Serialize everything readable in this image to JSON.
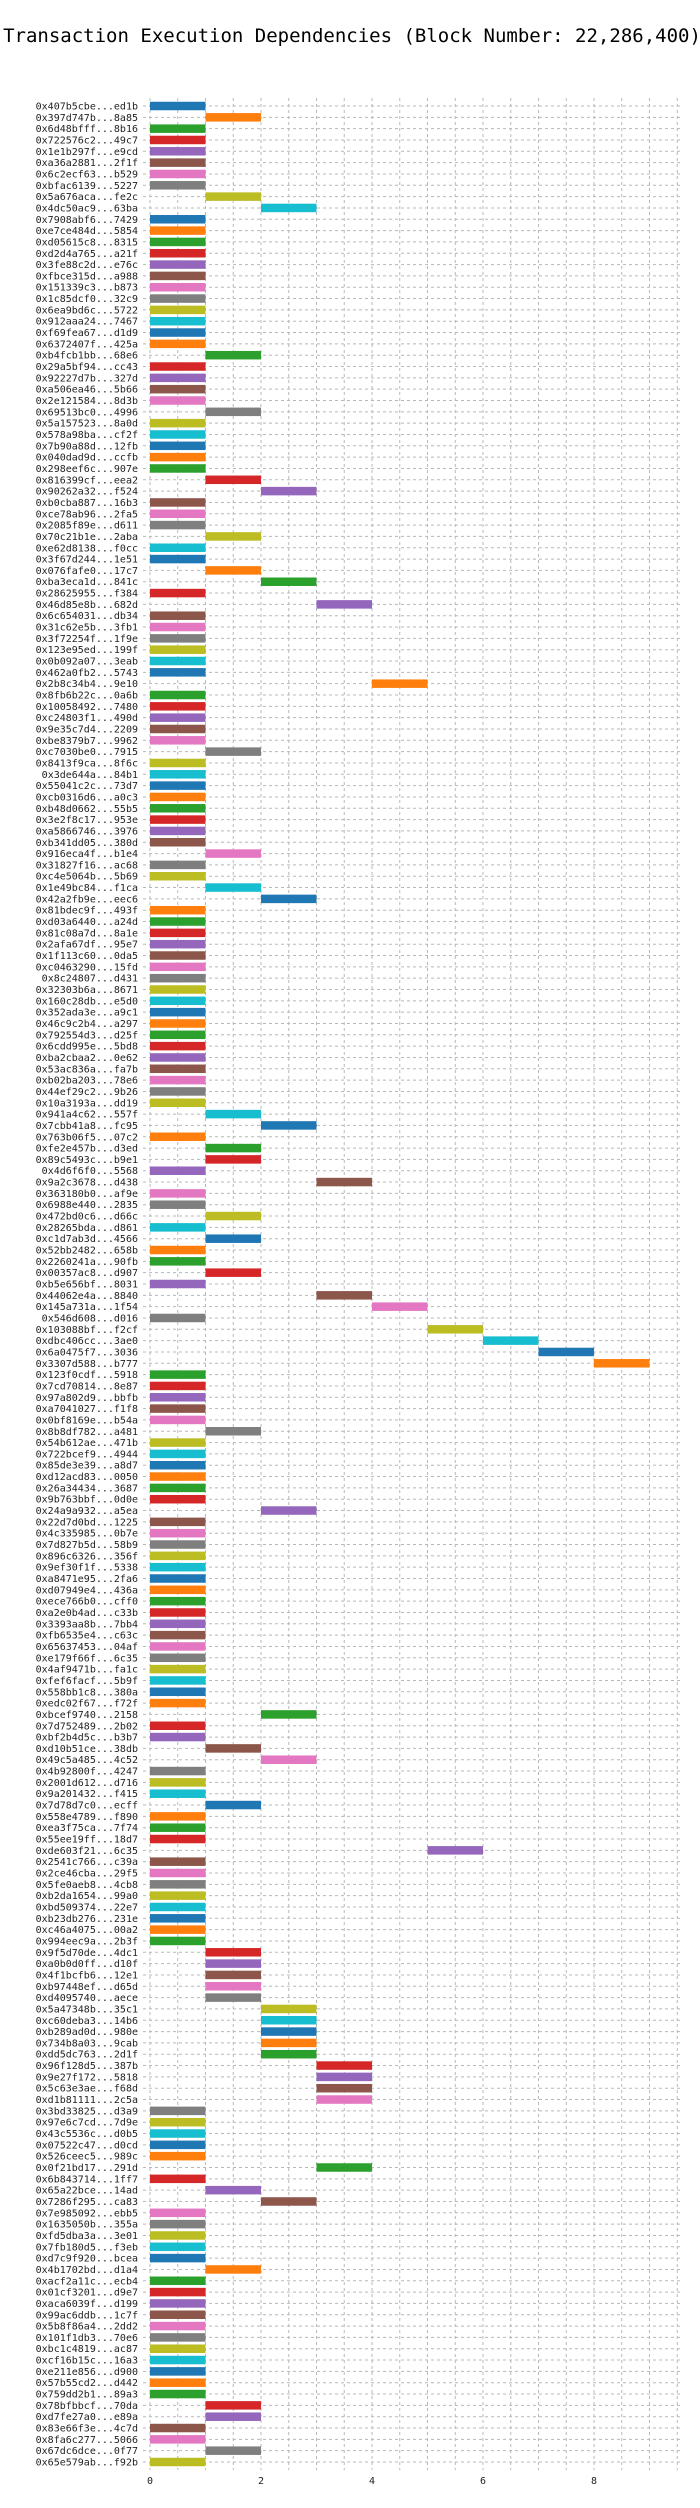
{
  "chart_data": {
    "type": "gantt-bar",
    "title": "Transaction Execution Dependencies (Block Number: 22,286,400)",
    "xlabel": "",
    "ylabel": "",
    "xlim": [
      0,
      10
    ],
    "x_ticks": [
      0,
      2,
      4,
      6,
      8
    ],
    "grid": true,
    "legend": "none",
    "palette": [
      "#1f77b4",
      "#ff7f0e",
      "#2ca02c",
      "#d62728",
      "#9467bd",
      "#8c564b",
      "#e377c2",
      "#7f7f7f",
      "#bcbd22",
      "#17becf"
    ],
    "transactions": [
      {
        "label": "0x407b5cbe...ed1b",
        "start": 0,
        "end": 1
      },
      {
        "label": "0x397d747b...8a85",
        "start": 1,
        "end": 2
      },
      {
        "label": "0x6d48bfff...8b16",
        "start": 0,
        "end": 1
      },
      {
        "label": "0x722576c2...49c7",
        "start": 0,
        "end": 1
      },
      {
        "label": "0x1e1b297f...e9cd",
        "start": 0,
        "end": 1
      },
      {
        "label": "0xa36a2881...2f1f",
        "start": 0,
        "end": 1
      },
      {
        "label": "0x6c2ecf63...b529",
        "start": 0,
        "end": 1
      },
      {
        "label": "0xbfac6139...5227",
        "start": 0,
        "end": 1
      },
      {
        "label": "0x5a676aca...fe2c",
        "start": 1,
        "end": 2
      },
      {
        "label": "0x4dc50ac9...63ba",
        "start": 2,
        "end": 3
      },
      {
        "label": "0x7908abf6...7429",
        "start": 0,
        "end": 1
      },
      {
        "label": "0xe7ce484d...5854",
        "start": 0,
        "end": 1
      },
      {
        "label": "0xd05615c8...8315",
        "start": 0,
        "end": 1
      },
      {
        "label": "0xd2d4a765...a21f",
        "start": 0,
        "end": 1
      },
      {
        "label": "0x3fe88c2d...e76c",
        "start": 0,
        "end": 1
      },
      {
        "label": "0xfbce315d...a988",
        "start": 0,
        "end": 1
      },
      {
        "label": "0x151339c3...b873",
        "start": 0,
        "end": 1
      },
      {
        "label": "0x1c85dcf0...32c9",
        "start": 0,
        "end": 1
      },
      {
        "label": "0x6ea9bd6c...5722",
        "start": 0,
        "end": 1
      },
      {
        "label": "0x912aaa24...7467",
        "start": 0,
        "end": 1
      },
      {
        "label": "0xf69fea67...d1d9",
        "start": 0,
        "end": 1
      },
      {
        "label": "0x6372407f...425a",
        "start": 0,
        "end": 1
      },
      {
        "label": "0xb4fcb1bb...68e6",
        "start": 1,
        "end": 2
      },
      {
        "label": "0x29a5bf94...cc43",
        "start": 0,
        "end": 1
      },
      {
        "label": "0x92227d7b...327d",
        "start": 0,
        "end": 1
      },
      {
        "label": "0xa506ea46...5b66",
        "start": 0,
        "end": 1
      },
      {
        "label": "0x2e121584...8d3b",
        "start": 0,
        "end": 1
      },
      {
        "label": "0x69513bc0...4996",
        "start": 1,
        "end": 2
      },
      {
        "label": "0x5a157523...8a0d",
        "start": 0,
        "end": 1
      },
      {
        "label": "0x578a98ba...cf2f",
        "start": 0,
        "end": 1
      },
      {
        "label": "0x7b90a88d...12fb",
        "start": 0,
        "end": 1
      },
      {
        "label": "0x040dad9d...ccfb",
        "start": 0,
        "end": 1
      },
      {
        "label": "0x298eef6c...907e",
        "start": 0,
        "end": 1
      },
      {
        "label": "0x816399cf...eea2",
        "start": 1,
        "end": 2
      },
      {
        "label": "0x90262a32...f524",
        "start": 2,
        "end": 3
      },
      {
        "label": "0xb0cba887...16b3",
        "start": 0,
        "end": 1
      },
      {
        "label": "0xce78ab96...2fa5",
        "start": 0,
        "end": 1
      },
      {
        "label": "0x2085f89e...d611",
        "start": 0,
        "end": 1
      },
      {
        "label": "0x70c21b1e...2aba",
        "start": 1,
        "end": 2
      },
      {
        "label": "0xe62d8138...f0cc",
        "start": 0,
        "end": 1
      },
      {
        "label": "0x3f67d244...1e51",
        "start": 0,
        "end": 1
      },
      {
        "label": "0x076fafe0...17c7",
        "start": 1,
        "end": 2
      },
      {
        "label": "0xba3eca1d...841c",
        "start": 2,
        "end": 3
      },
      {
        "label": "0x28625955...f384",
        "start": 0,
        "end": 1
      },
      {
        "label": "0x46d85e8b...682d",
        "start": 3,
        "end": 4
      },
      {
        "label": "0x6c654031...db34",
        "start": 0,
        "end": 1
      },
      {
        "label": "0x31c62e5b...3fb1",
        "start": 0,
        "end": 1
      },
      {
        "label": "0x3f72254f...1f9e",
        "start": 0,
        "end": 1
      },
      {
        "label": "0x123e95ed...199f",
        "start": 0,
        "end": 1
      },
      {
        "label": "0x0b092a07...3eab",
        "start": 0,
        "end": 1
      },
      {
        "label": "0x462a0fb2...5743",
        "start": 0,
        "end": 1
      },
      {
        "label": "0x2b8c34b4...9e10",
        "start": 4,
        "end": 5
      },
      {
        "label": "0x8fb6b22c...0a6b",
        "start": 0,
        "end": 1
      },
      {
        "label": "0x10058492...7480",
        "start": 0,
        "end": 1
      },
      {
        "label": "0xc24803f1...490d",
        "start": 0,
        "end": 1
      },
      {
        "label": "0x9e35c7d4...2209",
        "start": 0,
        "end": 1
      },
      {
        "label": "0xbe8379b7...9962",
        "start": 0,
        "end": 1
      },
      {
        "label": "0xc7030be0...7915",
        "start": 1,
        "end": 2
      },
      {
        "label": "0x8413f9ca...8f6c",
        "start": 0,
        "end": 1
      },
      {
        "label": "0x3de644a...84b1",
        "start": 0,
        "end": 1
      },
      {
        "label": "0x55041c2c...73d7",
        "start": 0,
        "end": 1
      },
      {
        "label": "0xcb0316d6...a0c3",
        "start": 0,
        "end": 1
      },
      {
        "label": "0xb48d0662...55b5",
        "start": 0,
        "end": 1
      },
      {
        "label": "0x3e2f8c17...953e",
        "start": 0,
        "end": 1
      },
      {
        "label": "0xa5866746...3976",
        "start": 0,
        "end": 1
      },
      {
        "label": "0xb341dd05...380d",
        "start": 0,
        "end": 1
      },
      {
        "label": "0x916eca4f...b1e4",
        "start": 1,
        "end": 2
      },
      {
        "label": "0x31827f16...ac68",
        "start": 0,
        "end": 1
      },
      {
        "label": "0xc4e5064b...5b69",
        "start": 0,
        "end": 1
      },
      {
        "label": "0x1e49bc84...f1ca",
        "start": 1,
        "end": 2
      },
      {
        "label": "0x42a2fb9e...eec6",
        "start": 2,
        "end": 3
      },
      {
        "label": "0x81bdec9f...493f",
        "start": 0,
        "end": 1
      },
      {
        "label": "0xd03a6440...a24d",
        "start": 0,
        "end": 1
      },
      {
        "label": "0x81c08a7d...8a1e",
        "start": 0,
        "end": 1
      },
      {
        "label": "0x2afa67df...95e7",
        "start": 0,
        "end": 1
      },
      {
        "label": "0x1f113c60...0da5",
        "start": 0,
        "end": 1
      },
      {
        "label": "0xc0463290...15fd",
        "start": 0,
        "end": 1
      },
      {
        "label": "0x8c24807...d431",
        "start": 0,
        "end": 1
      },
      {
        "label": "0x32303b6a...8671",
        "start": 0,
        "end": 1
      },
      {
        "label": "0x160c28db...e5d0",
        "start": 0,
        "end": 1
      },
      {
        "label": "0x352ada3e...a9c1",
        "start": 0,
        "end": 1
      },
      {
        "label": "0x46c9c2b4...a297",
        "start": 0,
        "end": 1
      },
      {
        "label": "0x792554d3...d25f",
        "start": 0,
        "end": 1
      },
      {
        "label": "0x6cdd995e...5bd8",
        "start": 0,
        "end": 1
      },
      {
        "label": "0xba2cbaa2...0e62",
        "start": 0,
        "end": 1
      },
      {
        "label": "0x53ac836a...fa7b",
        "start": 0,
        "end": 1
      },
      {
        "label": "0xb02ba203...78e6",
        "start": 0,
        "end": 1
      },
      {
        "label": "0x44ef29c2...9b26",
        "start": 0,
        "end": 1
      },
      {
        "label": "0x10a3193a...dd19",
        "start": 0,
        "end": 1
      },
      {
        "label": "0x941a4c62...557f",
        "start": 1,
        "end": 2
      },
      {
        "label": "0x7cbb41a8...fc95",
        "start": 2,
        "end": 3
      },
      {
        "label": "0x763b06f5...07c2",
        "start": 0,
        "end": 1
      },
      {
        "label": "0xfe2e457b...d3ed",
        "start": 1,
        "end": 2
      },
      {
        "label": "0x89c5493c...b9e1",
        "start": 1,
        "end": 2
      },
      {
        "label": "0x4d6f6f0...5568",
        "start": 0,
        "end": 1
      },
      {
        "label": "0x9a2c3678...d438",
        "start": 3,
        "end": 4
      },
      {
        "label": "0x363180b0...af9e",
        "start": 0,
        "end": 1
      },
      {
        "label": "0x6988e440...2835",
        "start": 0,
        "end": 1
      },
      {
        "label": "0x472bd0c6...d66c",
        "start": 1,
        "end": 2
      },
      {
        "label": "0x28265bda...d861",
        "start": 0,
        "end": 1
      },
      {
        "label": "0xc1d7ab3d...4566",
        "start": 1,
        "end": 2
      },
      {
        "label": "0x52bb2482...658b",
        "start": 0,
        "end": 1
      },
      {
        "label": "0x2260241a...90fb",
        "start": 0,
        "end": 1
      },
      {
        "label": "0x00357ac8...d907",
        "start": 1,
        "end": 2
      },
      {
        "label": "0xb5e656bf...8031",
        "start": 0,
        "end": 1
      },
      {
        "label": "0x44062e4a...8840",
        "start": 3,
        "end": 4
      },
      {
        "label": "0x145a731a...1f54",
        "start": 4,
        "end": 5
      },
      {
        "label": "0x546d608...d016",
        "start": 0,
        "end": 1
      },
      {
        "label": "0x103088bf...f2cf",
        "start": 5,
        "end": 6
      },
      {
        "label": "0xdbc406cc...3ae0",
        "start": 6,
        "end": 7
      },
      {
        "label": "0x6a0475f7...3036",
        "start": 7,
        "end": 8
      },
      {
        "label": "0x3307d588...b777",
        "start": 8,
        "end": 9
      },
      {
        "label": "0x123f0cdf...5918",
        "start": 0,
        "end": 1
      },
      {
        "label": "0x7cd70814...8e87",
        "start": 0,
        "end": 1
      },
      {
        "label": "0x97a802d9...bbfb",
        "start": 0,
        "end": 1
      },
      {
        "label": "0xa7041027...f1f8",
        "start": 0,
        "end": 1
      },
      {
        "label": "0x0bf8169e...b54a",
        "start": 0,
        "end": 1
      },
      {
        "label": "0x8b8df782...a481",
        "start": 1,
        "end": 2
      },
      {
        "label": "0x54b612ae...471b",
        "start": 0,
        "end": 1
      },
      {
        "label": "0x722bcef9...4944",
        "start": 0,
        "end": 1
      },
      {
        "label": "0x85de3e39...a8d7",
        "start": 0,
        "end": 1
      },
      {
        "label": "0xd12acd83...0050",
        "start": 0,
        "end": 1
      },
      {
        "label": "0x26a34434...3687",
        "start": 0,
        "end": 1
      },
      {
        "label": "0x9b763bbf...0d0e",
        "start": 0,
        "end": 1
      },
      {
        "label": "0x24a9a932...a5ea",
        "start": 2,
        "end": 3
      },
      {
        "label": "0x22d7d0bd...1225",
        "start": 0,
        "end": 1
      },
      {
        "label": "0x4c335985...0b7e",
        "start": 0,
        "end": 1
      },
      {
        "label": "0x7d827b5d...58b9",
        "start": 0,
        "end": 1
      },
      {
        "label": "0x896c6326...356f",
        "start": 0,
        "end": 1
      },
      {
        "label": "0x9ef30f1f...5338",
        "start": 0,
        "end": 1
      },
      {
        "label": "0xa8471e95...2fa6",
        "start": 0,
        "end": 1
      },
      {
        "label": "0xd07949e4...436a",
        "start": 0,
        "end": 1
      },
      {
        "label": "0xece766b0...cff0",
        "start": 0,
        "end": 1
      },
      {
        "label": "0xa2e0b4ad...c33b",
        "start": 0,
        "end": 1
      },
      {
        "label": "0x3393aa8b...7bb4",
        "start": 0,
        "end": 1
      },
      {
        "label": "0xfb6535e4...c63c",
        "start": 0,
        "end": 1
      },
      {
        "label": "0x65637453...04af",
        "start": 0,
        "end": 1
      },
      {
        "label": "0xe179f66f...6c35",
        "start": 0,
        "end": 1
      },
      {
        "label": "0x4af9471b...fa1c",
        "start": 0,
        "end": 1
      },
      {
        "label": "0xfef6facf...5b9f",
        "start": 0,
        "end": 1
      },
      {
        "label": "0x558bb1c8...380a",
        "start": 0,
        "end": 1
      },
      {
        "label": "0xedc02f67...f72f",
        "start": 0,
        "end": 1
      },
      {
        "label": "0xbcef9740...2158",
        "start": 2,
        "end": 3
      },
      {
        "label": "0x7d752489...2b02",
        "start": 0,
        "end": 1
      },
      {
        "label": "0xbf2b4d5c...b3b7",
        "start": 0,
        "end": 1
      },
      {
        "label": "0xd10b51ce...38db",
        "start": 1,
        "end": 2
      },
      {
        "label": "0x49c5a485...4c52",
        "start": 2,
        "end": 3
      },
      {
        "label": "0x4b92800f...4247",
        "start": 0,
        "end": 1
      },
      {
        "label": "0x2001d612...d716",
        "start": 0,
        "end": 1
      },
      {
        "label": "0x9a201432...f415",
        "start": 0,
        "end": 1
      },
      {
        "label": "0x7d78d7c0...ecff",
        "start": 1,
        "end": 2
      },
      {
        "label": "0x558e4789...f890",
        "start": 0,
        "end": 1
      },
      {
        "label": "0xea3f75ca...7f74",
        "start": 0,
        "end": 1
      },
      {
        "label": "0x55ee19ff...18d7",
        "start": 0,
        "end": 1
      },
      {
        "label": "0xde603f21...6c35",
        "start": 5,
        "end": 6
      },
      {
        "label": "0x2541c766...c39a",
        "start": 0,
        "end": 1
      },
      {
        "label": "0x2ce46cba...29f5",
        "start": 0,
        "end": 1
      },
      {
        "label": "0x5fe0aeb8...4cb8",
        "start": 0,
        "end": 1
      },
      {
        "label": "0xb2da1654...99a0",
        "start": 0,
        "end": 1
      },
      {
        "label": "0xbd509374...22e7",
        "start": 0,
        "end": 1
      },
      {
        "label": "0xb23db276...231e",
        "start": 0,
        "end": 1
      },
      {
        "label": "0xc46a4075...00a2",
        "start": 0,
        "end": 1
      },
      {
        "label": "0x994eec9a...2b3f",
        "start": 0,
        "end": 1
      },
      {
        "label": "0x9f5d70de...4dc1",
        "start": 1,
        "end": 2
      },
      {
        "label": "0xa0b0d0ff...d10f",
        "start": 1,
        "end": 2
      },
      {
        "label": "0x4f1bcfb6...12e1",
        "start": 1,
        "end": 2
      },
      {
        "label": "0xb97448ef...d65d",
        "start": 1,
        "end": 2
      },
      {
        "label": "0xd4095740...aece",
        "start": 1,
        "end": 2
      },
      {
        "label": "0x5a47348b...35c1",
        "start": 2,
        "end": 3
      },
      {
        "label": "0xc60deba3...14b6",
        "start": 2,
        "end": 3
      },
      {
        "label": "0xb289ad0d...980e",
        "start": 2,
        "end": 3
      },
      {
        "label": "0x734b8a03...9cab",
        "start": 2,
        "end": 3
      },
      {
        "label": "0xdd5dc763...2d1f",
        "start": 2,
        "end": 3
      },
      {
        "label": "0x96f128d5...387b",
        "start": 3,
        "end": 4
      },
      {
        "label": "0x9e27f172...5818",
        "start": 3,
        "end": 4
      },
      {
        "label": "0x5c63e3ae...f68d",
        "start": 3,
        "end": 4
      },
      {
        "label": "0xd1b81111...2c5a",
        "start": 3,
        "end": 4
      },
      {
        "label": "0x3bd33825...d3a9",
        "start": 0,
        "end": 1
      },
      {
        "label": "0x97e6c7cd...7d9e",
        "start": 0,
        "end": 1
      },
      {
        "label": "0x43c5536c...d0b5",
        "start": 0,
        "end": 1
      },
      {
        "label": "0x07522c47...d0cd",
        "start": 0,
        "end": 1
      },
      {
        "label": "0x526ceec5...989c",
        "start": 0,
        "end": 1
      },
      {
        "label": "0x0f21bd17...291d",
        "start": 3,
        "end": 4
      },
      {
        "label": "0x6b843714...1ff7",
        "start": 0,
        "end": 1
      },
      {
        "label": "0x65a22bce...14ad",
        "start": 1,
        "end": 2
      },
      {
        "label": "0x7286f295...ca83",
        "start": 2,
        "end": 3
      },
      {
        "label": "0x7e985092...ebb5",
        "start": 0,
        "end": 1
      },
      {
        "label": "0x1635050b...355a",
        "start": 0,
        "end": 1
      },
      {
        "label": "0xfd5dba3a...3e01",
        "start": 0,
        "end": 1
      },
      {
        "label": "0x7fb180d5...f3eb",
        "start": 0,
        "end": 1
      },
      {
        "label": "0xd7c9f920...bcea",
        "start": 0,
        "end": 1
      },
      {
        "label": "0x4b1702bd...d1a4",
        "start": 1,
        "end": 2
      },
      {
        "label": "0xacf2a11c...ecb4",
        "start": 0,
        "end": 1
      },
      {
        "label": "0x01cf3201...d9e7",
        "start": 0,
        "end": 1
      },
      {
        "label": "0xaca6039f...d199",
        "start": 0,
        "end": 1
      },
      {
        "label": "0x99ac6ddb...1c7f",
        "start": 0,
        "end": 1
      },
      {
        "label": "0x5b8f86a4...2dd2",
        "start": 0,
        "end": 1
      },
      {
        "label": "0x101f1db3...70e6",
        "start": 0,
        "end": 1
      },
      {
        "label": "0xbc1c4819...ac87",
        "start": 0,
        "end": 1
      },
      {
        "label": "0xcf16b15c...16a3",
        "start": 0,
        "end": 1
      },
      {
        "label": "0xe211e856...d900",
        "start": 0,
        "end": 1
      },
      {
        "label": "0x57b55cd2...d442",
        "start": 0,
        "end": 1
      },
      {
        "label": "0x759dd2b1...89a3",
        "start": 0,
        "end": 1
      },
      {
        "label": "0x78bfbbcf...70da",
        "start": 1,
        "end": 2
      },
      {
        "label": "0xd7fe27a0...e89a",
        "start": 1,
        "end": 2
      },
      {
        "label": "0x83e66f3e...4c7d",
        "start": 0,
        "end": 1
      },
      {
        "label": "0x8fa6c277...5066",
        "start": 0,
        "end": 1
      },
      {
        "label": "0x67dc6dce...0f77",
        "start": 1,
        "end": 2
      },
      {
        "label": "0x65e579ab...f92b",
        "start": 0,
        "end": 1
      }
    ]
  }
}
